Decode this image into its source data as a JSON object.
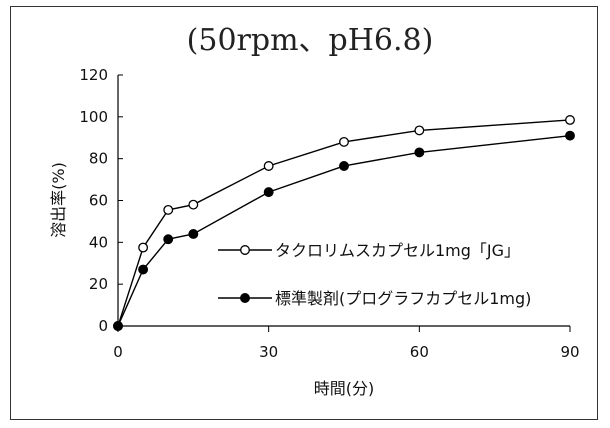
{
  "chart_data": {
    "type": "line",
    "title": "(50rpm、pH6.8)",
    "xlabel": "時間(分)",
    "ylabel": "溶出率(%)",
    "xlim": [
      0,
      90
    ],
    "ylim": [
      0,
      120
    ],
    "xticks": [
      0,
      30,
      60,
      90
    ],
    "yticks": [
      0,
      20,
      40,
      60,
      80,
      100,
      120
    ],
    "grid": false,
    "legend_position": "center-right",
    "series": [
      {
        "name": "タクロリムスカプセル1mg「JG」",
        "marker": "open-circle",
        "color": "#000000",
        "x": [
          0,
          5,
          10,
          15,
          30,
          45,
          60,
          90
        ],
        "y": [
          0,
          37.5,
          55.5,
          58,
          76.5,
          88,
          93.5,
          98.5
        ]
      },
      {
        "name": "標準製剤(プログラフカプセル1mg)",
        "marker": "filled-circle",
        "color": "#000000",
        "x": [
          0,
          5,
          10,
          15,
          30,
          45,
          60,
          90
        ],
        "y": [
          0,
          27,
          41.5,
          44,
          64,
          76.5,
          83,
          91
        ]
      }
    ]
  }
}
